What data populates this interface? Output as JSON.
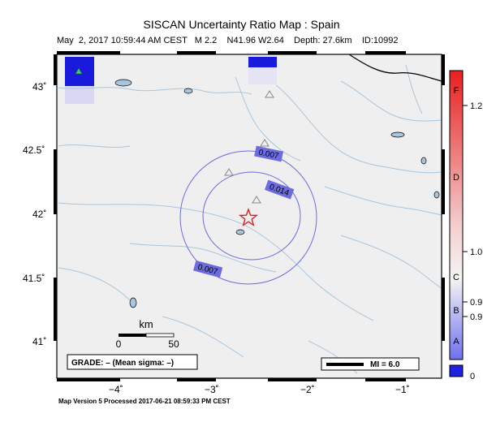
{
  "header": {
    "title": "SISCAN Uncertainty Ratio Map : Spain",
    "subtitle": "May  2, 2017 10:59:44 AM CEST   M 2.2    N41.96 W2.64    Depth: 27.6km    ID:10992"
  },
  "axes": {
    "lat_ticks": [
      "43˚",
      "42.5˚",
      "42˚",
      "41.5˚",
      "41˚"
    ],
    "lon_ticks": [
      "−4˚",
      "−3˚",
      "−2˚",
      "−1˚"
    ]
  },
  "contours": {
    "labels": [
      "0.007",
      "0.014",
      "0.007"
    ]
  },
  "scale_bar": {
    "unit": "km",
    "start": "0",
    "end": "50"
  },
  "grade_box": {
    "text": "GRADE: – (Mean sigma: –)"
  },
  "mi_box": {
    "text": "MI = 6.0"
  },
  "colorbar": {
    "grades": [
      "F",
      "D",
      "C",
      "B",
      "A"
    ],
    "values": [
      "1.2",
      "1.0",
      "0.9",
      "0.9"
    ],
    "bottom_value": "0"
  },
  "footer": {
    "text": "Map Version 5 Processed 2017-06-21 08:59:33 PM CEST"
  },
  "colors": {
    "land": "#efefef",
    "river": "#a9c6dd",
    "contour": "#6c6ce0",
    "epicenter": "#e02020",
    "colorbar_top": "#e82020",
    "colorbar_bottom": "#2020e0"
  },
  "icons": [
    "epicenter-star-icon",
    "station-triangle-icon"
  ]
}
